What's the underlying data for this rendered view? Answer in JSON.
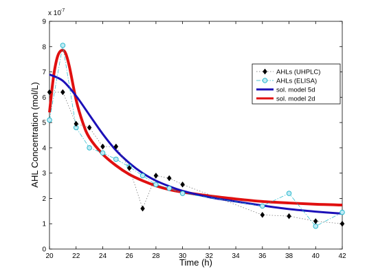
{
  "chart_data": {
    "type": "line",
    "xlabel": "Time (h)",
    "ylabel": "AHL Concentration (mol/L)",
    "y_multiplier_label": "x 10",
    "y_multiplier_exponent": "-7",
    "xlim": [
      20,
      42
    ],
    "ylim": [
      0,
      9
    ],
    "xticks": [
      20,
      22,
      24,
      26,
      28,
      30,
      32,
      34,
      36,
      38,
      40,
      42
    ],
    "yticks": [
      0,
      1,
      2,
      3,
      4,
      5,
      6,
      7,
      8,
      9
    ],
    "grid": false,
    "legend_position": "top-right",
    "series": [
      {
        "name": "AHLs (UHPLC)",
        "style": "dotted-marker",
        "marker": "diamond",
        "color": "#000000",
        "x": [
          20,
          21,
          22,
          23,
          24,
          25,
          26,
          27,
          28,
          29,
          30,
          36,
          38,
          40,
          42
        ],
        "y": [
          6.2,
          6.2,
          4.95,
          4.8,
          4.05,
          4.05,
          3.2,
          1.6,
          2.9,
          2.8,
          2.55,
          1.35,
          1.3,
          1.1,
          1.0
        ]
      },
      {
        "name": "AHLs (ELISA)",
        "style": "dashdot-marker",
        "marker": "circle",
        "color": "#1ab4c8",
        "x": [
          20,
          21,
          22,
          23,
          24,
          25,
          26,
          27,
          28,
          29,
          30,
          36,
          38,
          40,
          42
        ],
        "y": [
          5.1,
          8.05,
          4.8,
          4.0,
          3.8,
          3.55,
          3.25,
          2.9,
          2.55,
          2.4,
          2.2,
          1.7,
          2.2,
          0.9,
          1.45
        ]
      },
      {
        "name": "sol. model 5d",
        "style": "line",
        "color": "#1b10b8",
        "x": [
          20,
          21,
          22,
          23,
          24,
          25,
          26,
          27,
          28,
          29,
          30,
          32,
          34,
          36,
          38,
          40,
          42
        ],
        "y": [
          6.9,
          6.65,
          6.05,
          5.3,
          4.55,
          3.9,
          3.4,
          3.0,
          2.7,
          2.48,
          2.3,
          2.05,
          1.88,
          1.72,
          1.58,
          1.48,
          1.4
        ]
      },
      {
        "name": "sol. model 2d",
        "style": "line",
        "color": "#e01010",
        "x": [
          20,
          20.3,
          20.6,
          20.9,
          21.2,
          21.5,
          22,
          22.5,
          23,
          24,
          25,
          26,
          27,
          28,
          29,
          30,
          32,
          34,
          36,
          38,
          40,
          42
        ],
        "y": [
          5.4,
          6.8,
          7.6,
          7.85,
          7.75,
          7.2,
          5.9,
          5.0,
          4.4,
          3.75,
          3.3,
          2.95,
          2.7,
          2.5,
          2.35,
          2.25,
          2.1,
          1.98,
          1.88,
          1.82,
          1.77,
          1.74
        ]
      }
    ]
  }
}
